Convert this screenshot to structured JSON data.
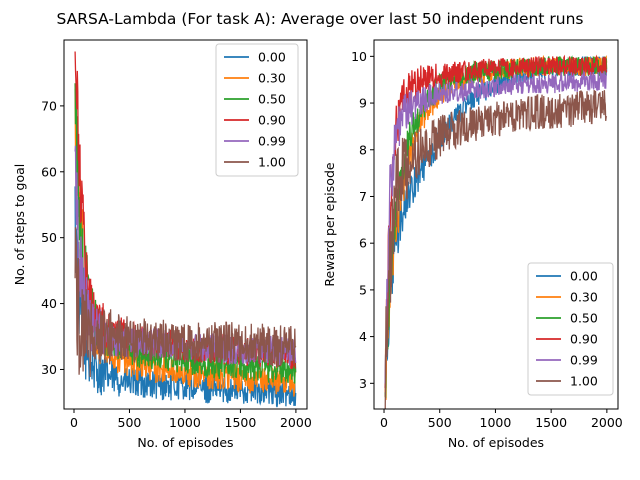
{
  "figure_title": "SARSA-Lambda (For task A): Average over last 50 independent runs",
  "series_colors": [
    "#1f77b4",
    "#ff7f0e",
    "#2ca02c",
    "#d62728",
    "#9467bd",
    "#8c564b"
  ],
  "chart_data": [
    {
      "type": "line",
      "title": "",
      "xlabel": "No. of episodes",
      "ylabel": "No. of steps to goal",
      "xlim": [
        -90,
        2100
      ],
      "ylim": [
        24,
        80
      ],
      "xticks": [
        0,
        500,
        1000,
        1500,
        2000
      ],
      "yticks": [
        30,
        40,
        50,
        60,
        70
      ],
      "legend_location": "top-right",
      "series": [
        {
          "name": "0.00",
          "x": [
            10,
            50,
            100,
            150,
            200,
            300,
            400,
            500,
            600,
            800,
            1000,
            1200,
            1400,
            1600,
            1800,
            2000
          ],
          "values": [
            52,
            40,
            34,
            31,
            30,
            29,
            28.5,
            28,
            28,
            27.5,
            27.5,
            27,
            27,
            27,
            26.5,
            26.5
          ]
        },
        {
          "name": "0.30",
          "x": [
            10,
            50,
            100,
            150,
            200,
            300,
            400,
            500,
            600,
            800,
            1000,
            1200,
            1400,
            1600,
            1800,
            2000
          ],
          "values": [
            68,
            56,
            44,
            38,
            35,
            33,
            32,
            31,
            30.5,
            30,
            29.5,
            29,
            29,
            28.5,
            28.5,
            28
          ]
        },
        {
          "name": "0.50",
          "x": [
            10,
            50,
            100,
            150,
            200,
            300,
            400,
            500,
            600,
            800,
            1000,
            1200,
            1400,
            1600,
            1800,
            2000
          ],
          "values": [
            70,
            54,
            44,
            39,
            37,
            35,
            34,
            33,
            32.5,
            32,
            31.5,
            31,
            30.5,
            30.5,
            30,
            30
          ]
        },
        {
          "name": "0.90",
          "x": [
            10,
            50,
            100,
            150,
            200,
            300,
            400,
            500,
            600,
            800,
            1000,
            1200,
            1400,
            1600,
            1800,
            2000
          ],
          "values": [
            76,
            60,
            46,
            40,
            38,
            36,
            35.5,
            35,
            34.5,
            34,
            33.5,
            33,
            33,
            32.5,
            32.5,
            32
          ]
        },
        {
          "name": "0.99",
          "x": [
            10,
            50,
            100,
            150,
            200,
            300,
            400,
            500,
            600,
            800,
            1000,
            1200,
            1400,
            1600,
            1800,
            2000
          ],
          "values": [
            62,
            48,
            40,
            37,
            36,
            35,
            34.5,
            34,
            34,
            34,
            33.5,
            33.5,
            33,
            33,
            33,
            32.5
          ]
        },
        {
          "name": "1.00",
          "x": [
            10,
            50,
            100,
            150,
            200,
            300,
            400,
            500,
            600,
            800,
            1000,
            1200,
            1400,
            1600,
            1800,
            2000
          ],
          "values": [
            44,
            38,
            36,
            35.5,
            35,
            35,
            35,
            34.5,
            34.5,
            34.5,
            34,
            34,
            34,
            34,
            33.5,
            33.5
          ]
        }
      ]
    },
    {
      "type": "line",
      "title": "",
      "xlabel": "No. of episodes",
      "ylabel": "Reward per episode",
      "xlim": [
        -90,
        2100
      ],
      "ylim": [
        2.45,
        10.35
      ],
      "xticks": [
        0,
        500,
        1000,
        1500,
        2000
      ],
      "yticks": [
        3,
        4,
        5,
        6,
        7,
        8,
        9,
        10
      ],
      "legend_location": "lower-right",
      "series": [
        {
          "name": "0.00",
          "x": [
            10,
            50,
            100,
            150,
            200,
            300,
            400,
            500,
            600,
            800,
            1000,
            1200,
            1400,
            1600,
            1800,
            2000
          ],
          "values": [
            3.0,
            4.8,
            6.0,
            6.5,
            6.9,
            7.4,
            7.8,
            8.2,
            8.6,
            9.1,
            9.4,
            9.6,
            9.7,
            9.75,
            9.8,
            9.8
          ]
        },
        {
          "name": "0.30",
          "x": [
            10,
            50,
            100,
            150,
            200,
            300,
            400,
            500,
            600,
            800,
            1000,
            1200,
            1400,
            1600,
            1800,
            2000
          ],
          "values": [
            2.9,
            5.0,
            6.3,
            7.0,
            7.6,
            8.4,
            8.9,
            9.2,
            9.4,
            9.6,
            9.7,
            9.75,
            9.8,
            9.8,
            9.8,
            9.8
          ]
        },
        {
          "name": "0.50",
          "x": [
            10,
            50,
            100,
            150,
            200,
            300,
            400,
            500,
            600,
            800,
            1000,
            1200,
            1400,
            1600,
            1800,
            2000
          ],
          "values": [
            3.1,
            5.2,
            6.6,
            7.4,
            8.0,
            8.7,
            9.1,
            9.4,
            9.5,
            9.65,
            9.7,
            9.75,
            9.8,
            9.8,
            9.8,
            9.8
          ]
        },
        {
          "name": "0.90",
          "x": [
            10,
            50,
            100,
            150,
            200,
            300,
            400,
            500,
            600,
            800,
            1000,
            1200,
            1400,
            1600,
            1800,
            2000
          ],
          "values": [
            3.3,
            6.5,
            8.3,
            8.9,
            9.2,
            9.45,
            9.55,
            9.6,
            9.65,
            9.7,
            9.75,
            9.75,
            9.8,
            9.8,
            9.8,
            9.8
          ]
        },
        {
          "name": "0.99",
          "x": [
            10,
            50,
            100,
            150,
            200,
            300,
            400,
            500,
            600,
            800,
            1000,
            1200,
            1400,
            1600,
            1800,
            2000
          ],
          "values": [
            3.5,
            7.0,
            8.2,
            8.6,
            8.8,
            9.0,
            9.1,
            9.2,
            9.25,
            9.3,
            9.35,
            9.4,
            9.4,
            9.45,
            9.45,
            9.5
          ]
        },
        {
          "name": "1.00",
          "x": [
            10,
            50,
            100,
            150,
            200,
            300,
            400,
            500,
            600,
            800,
            1000,
            1200,
            1400,
            1600,
            1800,
            2000
          ],
          "values": [
            3.2,
            5.5,
            7.0,
            7.4,
            7.6,
            7.9,
            8.1,
            8.3,
            8.4,
            8.55,
            8.65,
            8.75,
            8.8,
            8.85,
            8.9,
            8.95
          ]
        }
      ]
    }
  ]
}
